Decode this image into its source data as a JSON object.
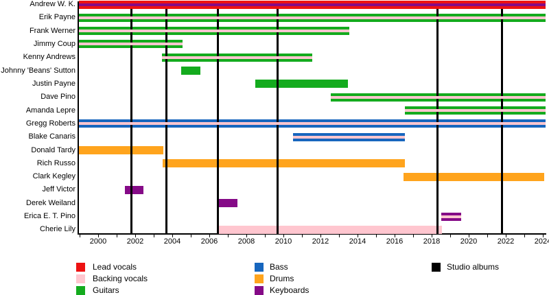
{
  "colors": {
    "lead_vocals": "#ED1212",
    "backing_vocals": "#FFC6CF",
    "guitars": "#14AB1E",
    "bass": "#1766BE",
    "drums": "#FFA41D",
    "keyboards": "#850A87",
    "album": "#000000",
    "axis": "#000000"
  },
  "chart_data": {
    "type": "bar",
    "subtype": "membership-timeline",
    "title": "",
    "xlabel": "",
    "ylabel": "",
    "x_axis": {
      "start": 1998.96,
      "end": 2024.15,
      "tick_labels": [
        2000,
        2002,
        2004,
        2006,
        2008,
        2010,
        2012,
        2014,
        2016,
        2018,
        2020,
        2022,
        2024
      ],
      "minor_tick_years_start": 1999,
      "minor_tick_years_end": 2024,
      "grid": false
    },
    "rows": [
      {
        "label": "Andrew W. K.",
        "bars": [
          {
            "role": "lead_vocals",
            "start": 1998.96,
            "end": 2024.15,
            "stripe": "keyboards"
          }
        ]
      },
      {
        "label": "Erik Payne",
        "bars": [
          {
            "role": "guitars",
            "start": 1998.96,
            "end": 2024.15,
            "stripe": "backing_vocals"
          }
        ]
      },
      {
        "label": "Frank Werner",
        "bars": [
          {
            "role": "guitars",
            "start": 1998.96,
            "end": 2013.55,
            "stripe": "backing_vocals"
          }
        ]
      },
      {
        "label": "Jimmy Coup",
        "bars": [
          {
            "role": "guitars",
            "start": 1998.96,
            "end": 2004.55,
            "stripe": "backing_vocals"
          }
        ]
      },
      {
        "label": "Kenny Andrews",
        "bars": [
          {
            "role": "guitars",
            "start": 2003.45,
            "end": 2011.55,
            "stripe": "backing_vocals"
          }
        ]
      },
      {
        "label": "Johnny 'Beans' Sutton",
        "bars": [
          {
            "role": "guitars",
            "start": 2004.48,
            "end": 2005.52,
            "stripe": null
          }
        ]
      },
      {
        "label": "Justin Payne",
        "bars": [
          {
            "role": "guitars",
            "start": 2008.48,
            "end": 2013.5,
            "stripe": null
          }
        ]
      },
      {
        "label": "Dave Pino",
        "bars": [
          {
            "role": "guitars",
            "start": 2012.56,
            "end": 2024.15,
            "stripe": "backing_vocals"
          }
        ]
      },
      {
        "label": "Amanda Lepre",
        "bars": [
          {
            "role": "guitars",
            "start": 2016.55,
            "end": 2024.15,
            "stripe": "backing_vocals"
          }
        ]
      },
      {
        "label": "Gregg Roberts",
        "bars": [
          {
            "role": "bass",
            "start": 1998.96,
            "end": 2024.15,
            "stripe": "backing_vocals"
          }
        ]
      },
      {
        "label": "Blake Canaris",
        "bars": [
          {
            "role": "bass",
            "start": 2010.52,
            "end": 2016.55,
            "stripe": "backing_vocals"
          }
        ]
      },
      {
        "label": "Donald Tardy",
        "bars": [
          {
            "role": "drums",
            "start": 1998.96,
            "end": 2003.52,
            "stripe": null
          }
        ]
      },
      {
        "label": "Rich Russo",
        "bars": [
          {
            "role": "drums",
            "start": 2003.48,
            "end": 2016.55,
            "stripe": null
          }
        ]
      },
      {
        "label": "Clark Kegley",
        "bars": [
          {
            "role": "drums",
            "start": 2016.48,
            "end": 2024.07,
            "stripe": null
          }
        ]
      },
      {
        "label": "Jeff Victor",
        "bars": [
          {
            "role": "keyboards",
            "start": 2001.44,
            "end": 2002.44,
            "stripe": null
          }
        ]
      },
      {
        "label": "Derek Weiland",
        "bars": [
          {
            "role": "keyboards",
            "start": 2006.48,
            "end": 2007.52,
            "stripe": null
          }
        ]
      },
      {
        "label": "Erica E. T. Pino",
        "bars": [
          {
            "role": "keyboards",
            "start": 2018.52,
            "end": 2019.59,
            "stripe": "backing_vocals"
          }
        ]
      },
      {
        "label": "Cherie Lily",
        "bars": [
          {
            "role": "backing_vocals",
            "start": 2006.48,
            "end": 2018.56,
            "stripe": null
          }
        ]
      }
    ],
    "album_lines": [
      2001.81,
      2003.7,
      2006.48,
      2009.7,
      2018.3,
      2021.81
    ]
  },
  "legend": {
    "columns": [
      {
        "items": [
          {
            "swatch": "lead_vocals",
            "label": "Lead vocals"
          },
          {
            "swatch": "backing_vocals",
            "label": "Backing vocals"
          },
          {
            "swatch": "guitars",
            "label": "Guitars"
          }
        ]
      },
      {
        "items": [
          {
            "swatch": "bass",
            "label": "Bass"
          },
          {
            "swatch": "drums",
            "label": "Drums"
          },
          {
            "swatch": "keyboards",
            "label": "Keyboards"
          }
        ]
      },
      {
        "items": [
          {
            "swatch": "album",
            "label": "Studio albums"
          }
        ]
      }
    ]
  }
}
